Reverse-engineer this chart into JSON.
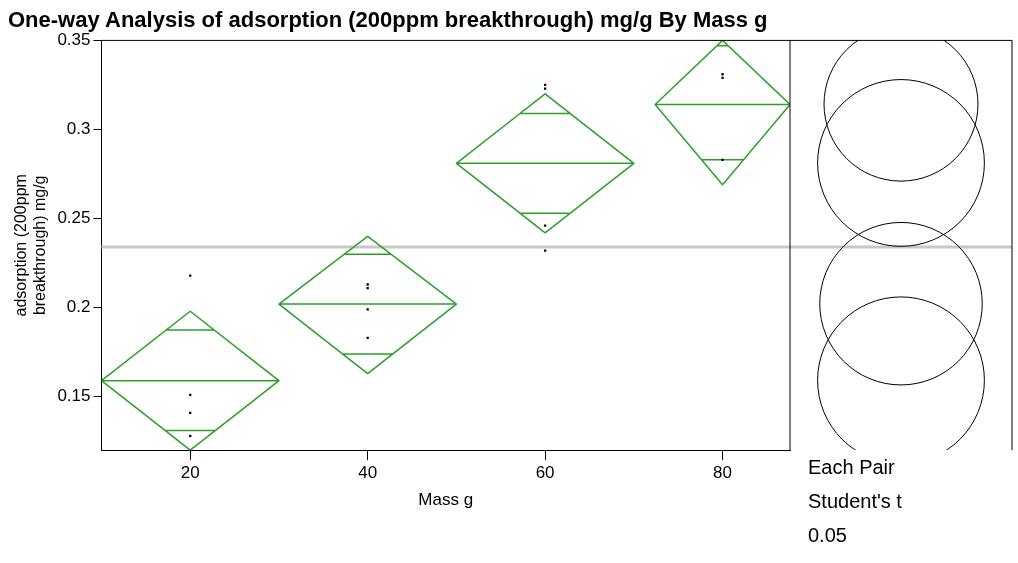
{
  "chart_data": {
    "type": "scatter",
    "title": "One-way Analysis of adsorption (200ppm breakthrough) mg/g By Mass g",
    "xlabel": "Mass g",
    "ylabel": "adsorption (200ppm breakthrough) mg/g",
    "xlim": [
      10,
      87.6
    ],
    "xticks": [
      20,
      40,
      60,
      80
    ],
    "ylim": [
      0.12,
      0.35
    ],
    "yticks": [
      0.15,
      0.2,
      0.25,
      0.3,
      0.35
    ],
    "grid": false,
    "legend": false,
    "series": [
      {
        "type": "scatter",
        "color": "#000000",
        "marker": "square",
        "x": [
          20,
          20,
          20,
          20,
          40,
          40,
          40,
          40,
          60,
          60,
          60,
          60,
          80,
          80,
          80
        ],
        "values": [
          0.218,
          0.151,
          0.141,
          0.128,
          0.213,
          0.211,
          0.199,
          0.183,
          0.325,
          0.323,
          0.246,
          0.232,
          0.331,
          0.329,
          0.283
        ]
      },
      {
        "type": "line",
        "color": "#2ca02c",
        "marker": "none",
        "x": [
          10,
          20,
          30,
          20,
          10,
          30,
          null,
          17.3,
          22.7,
          null,
          17.2,
          22.8
        ],
        "values": [
          0.159,
          0.198,
          0.159,
          0.12,
          0.159,
          0.159,
          null,
          0.1875,
          0.1875,
          null,
          0.131,
          0.131
        ]
      },
      {
        "type": "line",
        "color": "#2ca02c",
        "marker": "none",
        "x": [
          30,
          40,
          50,
          40,
          30,
          50,
          null,
          37.4,
          42.6,
          null,
          37.1,
          42.9
        ],
        "values": [
          0.202,
          0.24,
          0.202,
          0.163,
          0.202,
          0.202,
          null,
          0.23,
          0.23,
          null,
          0.174,
          0.174
        ]
      },
      {
        "type": "line",
        "color": "#2ca02c",
        "marker": "none",
        "x": [
          50,
          60,
          70,
          60,
          50,
          70,
          null,
          57.2,
          62.8,
          null,
          57.3,
          62.7
        ],
        "values": [
          0.281,
          0.32,
          0.281,
          0.242,
          0.281,
          0.281,
          null,
          0.309,
          0.309,
          null,
          0.253,
          0.253
        ]
      },
      {
        "type": "line",
        "color": "#2ca02c",
        "marker": "none",
        "x": [
          72.4,
          80,
          87.6,
          80,
          72.4,
          87.6,
          null,
          79.4,
          80.6,
          null,
          77.6,
          82.4
        ],
        "values": [
          0.314,
          0.35,
          0.314,
          0.269,
          0.314,
          0.314,
          null,
          0.347,
          0.347,
          null,
          0.283,
          0.283
        ]
      }
    ],
    "ref_lines": [
      {
        "axis": "y",
        "value": 0.234,
        "color": "#c8c8c8"
      }
    ],
    "annotations": [
      "Each Pair",
      "Student's t",
      "0.05"
    ]
  }
}
